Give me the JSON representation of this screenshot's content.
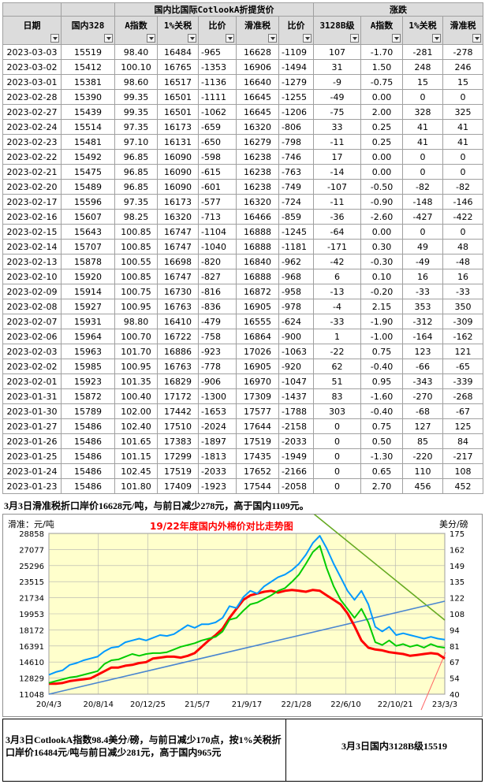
{
  "table": {
    "group_title": "国内比国际CotlookA折提货价",
    "group_change": "涨跌",
    "headers": [
      "日期",
      "国内328",
      "A指数",
      "1%关税",
      "比价",
      "滑准税",
      "比价",
      "3128B级",
      "A指数",
      "1%关税",
      "滑准税"
    ],
    "rows": [
      [
        "2023-03-03",
        "15519",
        "98.40",
        "16484",
        "-965",
        "16628",
        "-1109",
        "107",
        "-1.70",
        "-281",
        "-278"
      ],
      [
        "2023-03-02",
        "15412",
        "100.10",
        "16765",
        "-1353",
        "16906",
        "-1494",
        "31",
        "1.50",
        "248",
        "246"
      ],
      [
        "2023-03-01",
        "15381",
        "98.60",
        "16517",
        "-1136",
        "16640",
        "-1279",
        "-9",
        "-0.75",
        "15",
        "15"
      ],
      [
        "2023-02-28",
        "15390",
        "99.35",
        "16501",
        "-1111",
        "16645",
        "-1255",
        "-49",
        "0.00",
        "0",
        "0"
      ],
      [
        "2023-02-27",
        "15439",
        "99.35",
        "16501",
        "-1062",
        "16645",
        "-1206",
        "-75",
        "2.00",
        "328",
        "325"
      ],
      [
        "2023-02-24",
        "15514",
        "97.35",
        "16173",
        "-659",
        "16320",
        "-806",
        "33",
        "0.25",
        "41",
        "41"
      ],
      [
        "2023-02-23",
        "15481",
        "97.10",
        "16131",
        "-650",
        "16279",
        "-798",
        "-11",
        "0.25",
        "41",
        "41"
      ],
      [
        "2023-02-22",
        "15492",
        "96.85",
        "16090",
        "-598",
        "16238",
        "-746",
        "17",
        "0.00",
        "0",
        "0"
      ],
      [
        "2023-02-21",
        "15475",
        "96.85",
        "16090",
        "-615",
        "16238",
        "-763",
        "-14",
        "0.00",
        "0",
        "0"
      ],
      [
        "2023-02-20",
        "15489",
        "96.85",
        "16090",
        "-601",
        "16238",
        "-749",
        "-107",
        "-0.50",
        "-82",
        "-82"
      ],
      [
        "2023-02-17",
        "15596",
        "97.35",
        "16173",
        "-577",
        "16320",
        "-724",
        "-11",
        "-0.90",
        "-148",
        "-146"
      ],
      [
        "2023-02-16",
        "15607",
        "98.25",
        "16320",
        "-713",
        "16466",
        "-859",
        "-36",
        "-2.60",
        "-427",
        "-422"
      ],
      [
        "2023-02-15",
        "15643",
        "100.85",
        "16747",
        "-1104",
        "16888",
        "-1245",
        "-64",
        "0.00",
        "0",
        "0"
      ],
      [
        "2023-02-14",
        "15707",
        "100.85",
        "16747",
        "-1040",
        "16888",
        "-1181",
        "-171",
        "0.30",
        "49",
        "48"
      ],
      [
        "2023-02-13",
        "15878",
        "100.55",
        "16698",
        "-820",
        "16840",
        "-962",
        "-42",
        "-0.30",
        "-49",
        "-48"
      ],
      [
        "2023-02-10",
        "15920",
        "100.85",
        "16747",
        "-827",
        "16888",
        "-968",
        "6",
        "0.10",
        "16",
        "16"
      ],
      [
        "2023-02-09",
        "15914",
        "100.75",
        "16730",
        "-816",
        "16872",
        "-958",
        "-13",
        "-0.20",
        "-33",
        "-33"
      ],
      [
        "2023-02-08",
        "15927",
        "100.95",
        "16763",
        "-836",
        "16905",
        "-978",
        "-4",
        "2.15",
        "353",
        "350"
      ],
      [
        "2023-02-07",
        "15931",
        "98.80",
        "16410",
        "-479",
        "16555",
        "-624",
        "-33",
        "-1.90",
        "-312",
        "-309"
      ],
      [
        "2023-02-06",
        "15964",
        "100.70",
        "16722",
        "-758",
        "16864",
        "-900",
        "1",
        "-1.00",
        "-164",
        "-162"
      ],
      [
        "2023-02-03",
        "15963",
        "101.70",
        "16886",
        "-923",
        "17026",
        "-1063",
        "-22",
        "0.75",
        "123",
        "121"
      ],
      [
        "2023-02-02",
        "15985",
        "100.95",
        "16763",
        "-778",
        "16905",
        "-920",
        "62",
        "-0.40",
        "-66",
        "-65"
      ],
      [
        "2023-02-01",
        "15923",
        "101.35",
        "16829",
        "-906",
        "16970",
        "-1047",
        "51",
        "0.95",
        "-343",
        "-339"
      ],
      [
        "2023-01-31",
        "15872",
        "100.40",
        "17172",
        "-1300",
        "17309",
        "-1437",
        "83",
        "-1.60",
        "-270",
        "-268"
      ],
      [
        "2023-01-30",
        "15789",
        "102.00",
        "17442",
        "-1653",
        "17577",
        "-1788",
        "303",
        "-0.40",
        "-68",
        "-67"
      ],
      [
        "2023-01-27",
        "15486",
        "102.40",
        "17510",
        "-2024",
        "17644",
        "-2158",
        "0",
        "0.75",
        "127",
        "125"
      ],
      [
        "2023-01-26",
        "15486",
        "101.65",
        "17383",
        "-1897",
        "17519",
        "-2033",
        "0",
        "0.50",
        "85",
        "84"
      ],
      [
        "2023-01-25",
        "15486",
        "101.15",
        "17299",
        "-1813",
        "17435",
        "-1949",
        "0",
        "-1.30",
        "-220",
        "-217"
      ],
      [
        "2023-01-24",
        "15486",
        "102.45",
        "17519",
        "-2033",
        "17652",
        "-2166",
        "0",
        "0.65",
        "110",
        "108"
      ],
      [
        "2023-01-23",
        "15486",
        "101.80",
        "17409",
        "-1923",
        "17544",
        "-2058",
        "0",
        "2.70",
        "456",
        "452"
      ]
    ]
  },
  "note_top": "3月3日滑准税折口岸价16628元/吨，与前日减少278元，高于国内1109元。",
  "note_bottom_left": "3月3日CotlookA指数98.4美分/磅，与前日减少170点，按1%关税折口岸价16484元/吨与前日减少281元，高于国内965元",
  "note_bottom_right": "3月3日国内3128B级15519",
  "chart_data": {
    "type": "line",
    "title": "19/22年度国内外棉价对比走势图",
    "ylabel_left": "滑准：元/吨",
    "ylabel_right": "美分/磅",
    "y_left_ticks": [
      "28858",
      "27077",
      "25296",
      "23515",
      "21734",
      "19953",
      "18172",
      "16391",
      "14610",
      "12829",
      "11048"
    ],
    "y_right_ticks": [
      "175",
      "162",
      "149",
      "135",
      "122",
      "108",
      "94",
      "81",
      "67",
      "54",
      "40"
    ],
    "x_ticks": [
      "20/4/3",
      "20/8/14",
      "20/12/25",
      "21/5/7",
      "21/9/17",
      "22/1/28",
      "22/6/10",
      "22/10/21",
      "23/3/3"
    ],
    "ylim_left": [
      11048,
      28858
    ],
    "series": [
      {
        "color": "#ff0000",
        "values": [
          12200,
          12200,
          12300,
          12500,
          12600,
          12700,
          12800,
          13200,
          13600,
          14000,
          14000,
          14200,
          14300,
          14500,
          14600,
          15000,
          15100,
          15200,
          15200,
          15100,
          15300,
          15600,
          16300,
          17000,
          17600,
          18300,
          19500,
          20500,
          21500,
          22000,
          22200,
          22400,
          22500,
          22300,
          22500,
          22600,
          22500,
          22400,
          22600,
          22500,
          22000,
          21500,
          21000,
          20000,
          18600,
          17000,
          16200,
          16000,
          15900,
          15700,
          15600,
          15500,
          15300,
          15400,
          15500,
          15600,
          15500,
          15000
        ]
      },
      {
        "color": "#0099ff",
        "values": [
          13200,
          13500,
          13700,
          14300,
          14500,
          14800,
          15000,
          15200,
          15800,
          16200,
          16300,
          16800,
          17000,
          17200,
          17000,
          17300,
          17600,
          17500,
          17700,
          18200,
          18700,
          18400,
          18800,
          18800,
          19000,
          19500,
          20800,
          20600,
          21800,
          22500,
          22200,
          23000,
          23500,
          24000,
          24300,
          24800,
          25500,
          26500,
          27800,
          28600,
          27200,
          25500,
          24000,
          22500,
          21500,
          22500,
          21000,
          18500,
          18000,
          18500,
          17600,
          17800,
          17600,
          17400,
          17200,
          17400,
          17200,
          17100
        ]
      },
      {
        "color": "#00cc00",
        "values": [
          12300,
          12500,
          12700,
          12900,
          13000,
          13200,
          13400,
          13600,
          14400,
          14800,
          14900,
          15200,
          15500,
          15300,
          15500,
          15600,
          15600,
          15700,
          16000,
          16300,
          16500,
          16700,
          17000,
          17200,
          17400,
          18000,
          19300,
          19500,
          20300,
          21000,
          21200,
          21600,
          22000,
          22500,
          22800,
          23500,
          24300,
          25500,
          26800,
          27500,
          25000,
          23000,
          21500,
          20500,
          19500,
          20500,
          19000,
          16800,
          16500,
          17000,
          16400,
          16600,
          16300,
          16500,
          16200,
          16600,
          16300,
          16200
        ]
      }
    ]
  }
}
